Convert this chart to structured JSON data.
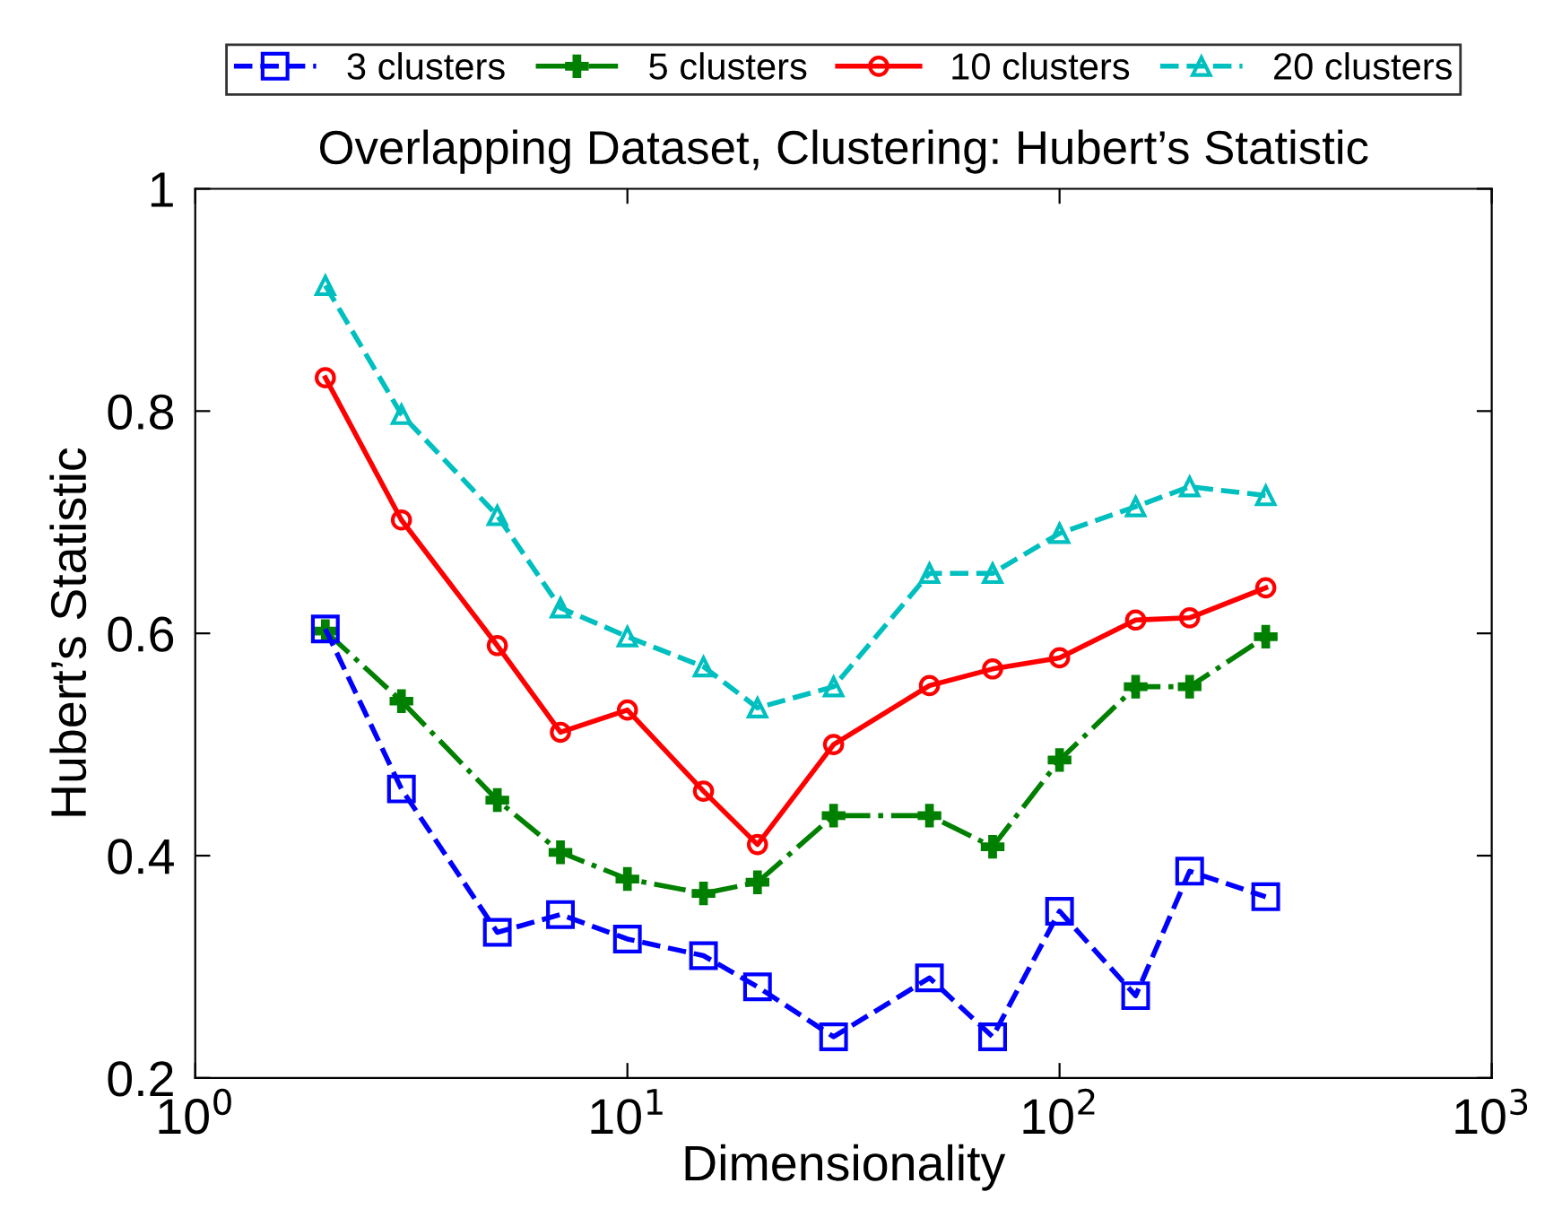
{
  "chart_data": {
    "type": "line",
    "title": "Overlapping Dataset, Clustering: Hubert’s Statistic",
    "xlabel": "Dimensionality",
    "ylabel": "Hubert’s Statistic",
    "x": [
      2,
      3,
      5,
      7,
      10,
      15,
      20,
      30,
      50,
      70,
      100,
      150,
      200,
      300
    ],
    "series": [
      {
        "name": "3 clusters",
        "color": "#0000ff",
        "marker": "square",
        "line_style": "dashed",
        "values": [
          0.604,
          0.46,
          0.331,
          0.347,
          0.325,
          0.31,
          0.282,
          0.237,
          0.29,
          0.237,
          0.35,
          0.274,
          0.386,
          0.363
        ]
      },
      {
        "name": "5 clusters",
        "color": "#008000",
        "marker": "cross",
        "line_style": "dashdot",
        "values": [
          0.602,
          0.539,
          0.45,
          0.403,
          0.379,
          0.366,
          0.376,
          0.436,
          0.436,
          0.408,
          0.486,
          0.552,
          0.552,
          0.597
        ]
      },
      {
        "name": "10 clusters",
        "color": "#ff0000",
        "marker": "circle",
        "line_style": "solid",
        "values": [
          0.83,
          0.702,
          0.589,
          0.511,
          0.531,
          0.458,
          0.41,
          0.5,
          0.553,
          0.568,
          0.578,
          0.612,
          0.614,
          0.641
        ]
      },
      {
        "name": "20 clusters",
        "color": "#00bfbf",
        "marker": "triangle",
        "line_style": "dashed",
        "values": [
          0.913,
          0.797,
          0.706,
          0.623,
          0.597,
          0.57,
          0.533,
          0.552,
          0.654,
          0.654,
          0.69,
          0.714,
          0.732,
          0.724
        ]
      }
    ],
    "log": "x",
    "xlim": [
      1,
      1000
    ],
    "xticks": [
      {
        "value": 1,
        "label": "10$^{0}$"
      },
      {
        "value": 10,
        "label": "10$^{1}$"
      },
      {
        "value": 100,
        "label": "10$^{2}$"
      },
      {
        "value": 1000,
        "label": "10$^{3}$"
      }
    ],
    "ylim": [
      0.2,
      1
    ],
    "yticks": [
      0.2,
      0.4,
      0.6,
      0.8,
      1
    ],
    "grid": false,
    "legend": "top"
  }
}
